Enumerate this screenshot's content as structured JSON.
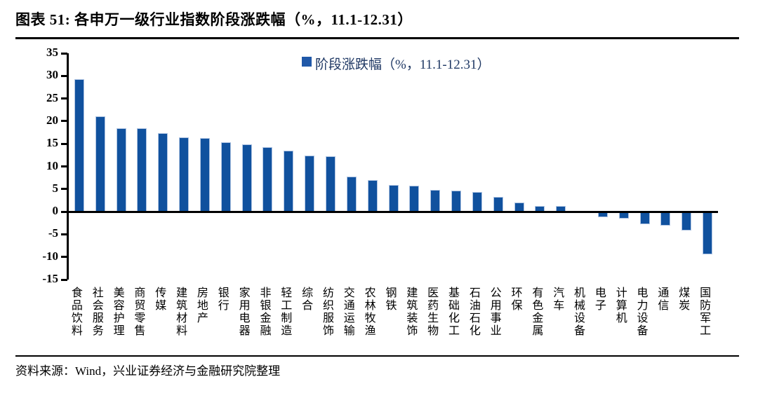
{
  "header": {
    "title": "图表 51: 各申万一级行业指数阶段涨跌幅（%，11.1-12.31）"
  },
  "legend": {
    "label": "阶段涨跌幅（%，11.1-12.31）",
    "swatch_color": "#2058A8"
  },
  "footer": {
    "source": "资料来源：Wind，兴业证券经济与金融研究院整理"
  },
  "chart_data": {
    "type": "bar",
    "title": "各申万一级行业指数阶段涨跌幅（%，11.1-12.31）",
    "legend": "阶段涨跌幅（%，11.1-12.31）",
    "legend_position": "top-center",
    "grid": false,
    "ylim": [
      -15,
      35
    ],
    "yticks": [
      35,
      30,
      25,
      20,
      15,
      10,
      5,
      0,
      -5,
      -10,
      -15
    ],
    "bar_color": "#10519E",
    "bar_border_color": "#AFC4E2",
    "categories": [
      "食品饮料",
      "社会服务",
      "美容护理",
      "商贸零售",
      "传媒",
      "建筑材料",
      "房地产",
      "银行",
      "家用电器",
      "非银金融",
      "轻工制造",
      "综合",
      "纺织服饰",
      "交通运输",
      "农林牧渔",
      "钢铁",
      "建筑装饰",
      "医药生物",
      "基础化工",
      "石油石化",
      "公用事业",
      "环保",
      "有色金属",
      "汽车",
      "机械设备",
      "电子",
      "计算机",
      "电力设备",
      "通信",
      "煤炭",
      "国防军工"
    ],
    "values": [
      29.2,
      21.0,
      18.5,
      18.4,
      17.4,
      16.5,
      16.3,
      15.4,
      14.8,
      14.3,
      13.5,
      12.4,
      12.2,
      7.7,
      7.0,
      5.9,
      5.8,
      4.8,
      4.6,
      4.3,
      3.3,
      2.1,
      1.3,
      1.2,
      -0.1,
      -1.3,
      -1.6,
      -2.7,
      -3.1,
      -4.2,
      -9.4
    ]
  }
}
